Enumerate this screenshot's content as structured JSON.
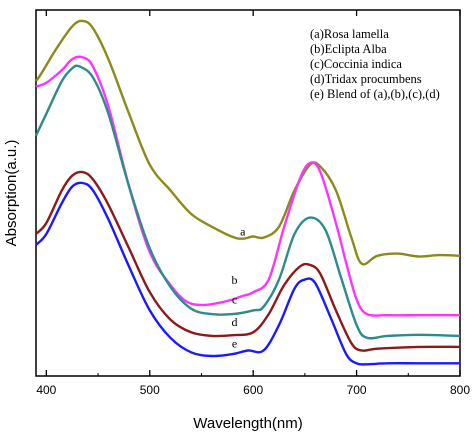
{
  "chart_data": {
    "type": "line",
    "xlabel": "Wavelength(nm)",
    "ylabel": "Absorption(a.u.)",
    "xlim": [
      390,
      800
    ],
    "x_ticks": [
      "400",
      "500",
      "600",
      "700",
      "800"
    ],
    "y_ticks_shown": false,
    "grid": false,
    "legend_position": "top-right",
    "legend": [
      "(a)Rosa lamella",
      "(b)Eclipta Alba",
      "(c)Coccinia indica",
      "(d)Tridax procumbens",
      "(e) Blend of (a),(b),(c),(d)"
    ],
    "series": [
      {
        "name": "a",
        "color": "#8b8b1a",
        "label_at": [
          590,
          0.366
        ],
        "x": [
          390,
          395,
          410,
          425,
          435,
          445,
          460,
          480,
          500,
          520,
          540,
          560,
          580,
          590,
          600,
          610,
          625,
          640,
          655,
          665,
          680,
          695,
          705,
          720,
          740,
          760,
          780,
          800
        ],
        "y": [
          0.79,
          0.81,
          0.88,
          0.94,
          0.955,
          0.935,
          0.85,
          0.7,
          0.56,
          0.49,
          0.425,
          0.39,
          0.362,
          0.357,
          0.363,
          0.36,
          0.39,
          0.49,
          0.56,
          0.555,
          0.49,
          0.36,
          0.288,
          0.31,
          0.316,
          0.308,
          0.312,
          0.31
        ]
      },
      {
        "name": "b",
        "color": "#ff33ff",
        "label_at": [
          582,
          0.232
        ],
        "x": [
          390,
          400,
          415,
          425,
          435,
          445,
          460,
          480,
          500,
          520,
          535,
          550,
          565,
          580,
          590,
          600,
          615,
          630,
          645,
          655,
          665,
          680,
          690,
          700,
          710,
          730,
          760,
          800
        ],
        "y": [
          0.775,
          0.785,
          0.82,
          0.85,
          0.855,
          0.83,
          0.72,
          0.5,
          0.32,
          0.23,
          0.185,
          0.175,
          0.18,
          0.19,
          0.2,
          0.21,
          0.245,
          0.39,
          0.52,
          0.565,
          0.54,
          0.4,
          0.29,
          0.19,
          0.15,
          0.147,
          0.147,
          0.147
        ]
      },
      {
        "name": "c",
        "color": "#2e8b8b",
        "label_at": [
          582,
          0.179
        ],
        "x": [
          390,
          400,
          415,
          425,
          432,
          445,
          460,
          480,
          500,
          520,
          540,
          560,
          580,
          600,
          610,
          625,
          640,
          655,
          670,
          685,
          700,
          710,
          730,
          760,
          800
        ],
        "y": [
          0.64,
          0.7,
          0.79,
          0.825,
          0.83,
          0.8,
          0.7,
          0.5,
          0.33,
          0.225,
          0.165,
          0.15,
          0.15,
          0.16,
          0.17,
          0.245,
          0.37,
          0.415,
          0.38,
          0.25,
          0.12,
          0.085,
          0.09,
          0.093,
          0.09
        ]
      },
      {
        "name": "d",
        "color": "#8b1a1a",
        "label_at": [
          582,
          0.117
        ],
        "x": [
          390,
          400,
          415,
          425,
          435,
          445,
          460,
          480,
          500,
          520,
          540,
          560,
          580,
          600,
          615,
          630,
          645,
          655,
          665,
          680,
          695,
          705,
          720,
          760,
          800
        ],
        "y": [
          0.37,
          0.4,
          0.49,
          0.53,
          0.54,
          0.52,
          0.45,
          0.33,
          0.21,
          0.135,
          0.1,
          0.09,
          0.092,
          0.1,
          0.15,
          0.23,
          0.28,
          0.285,
          0.26,
          0.16,
          0.07,
          0.05,
          0.055,
          0.06,
          0.06
        ]
      },
      {
        "name": "e",
        "color": "#1a1aff",
        "label_at": [
          582,
          0.058
        ],
        "x": [
          390,
          400,
          415,
          425,
          435,
          445,
          460,
          480,
          500,
          520,
          540,
          560,
          580,
          595,
          610,
          625,
          640,
          650,
          660,
          675,
          690,
          700,
          710,
          730,
          760,
          800
        ],
        "y": [
          0.34,
          0.37,
          0.455,
          0.5,
          0.51,
          0.49,
          0.41,
          0.28,
          0.16,
          0.085,
          0.045,
          0.035,
          0.04,
          0.05,
          0.05,
          0.12,
          0.22,
          0.245,
          0.235,
          0.14,
          0.04,
          0.015,
          0.012,
          0.015,
          0.015,
          0.015
        ]
      }
    ]
  }
}
